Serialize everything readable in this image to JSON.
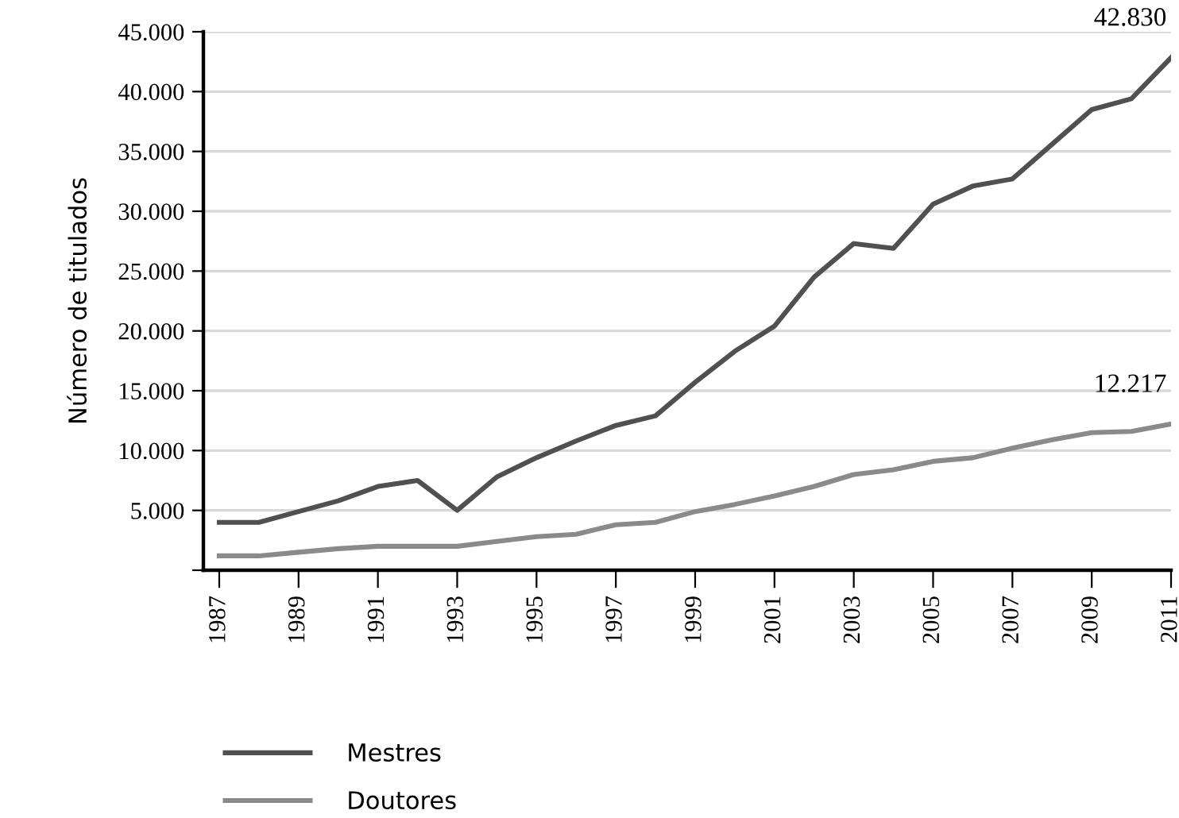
{
  "chart_data": {
    "type": "line",
    "ylabel": "Número de titulados",
    "x": [
      1987,
      1988,
      1989,
      1990,
      1991,
      1992,
      1993,
      1994,
      1995,
      1996,
      1997,
      1998,
      1999,
      2000,
      2001,
      2002,
      2003,
      2004,
      2005,
      2006,
      2007,
      2008,
      2009,
      2010,
      2011
    ],
    "series": [
      {
        "name": "Mestres",
        "color": "#505050",
        "values": [
          4000,
          4000,
          4900,
          5800,
          7000,
          7500,
          5000,
          7800,
          9400,
          10800,
          12100,
          12900,
          15700,
          18300,
          20400,
          24500,
          27300,
          26900,
          30600,
          32100,
          32700,
          35600,
          38500,
          39400,
          42830
        ]
      },
      {
        "name": "Doutores",
        "color": "#8a8a8a",
        "values": [
          1200,
          1200,
          1500,
          1800,
          2000,
          2000,
          2000,
          2400,
          2800,
          3000,
          3800,
          4000,
          4900,
          5500,
          6200,
          7000,
          8000,
          8400,
          9100,
          9400,
          10200,
          10900,
          11500,
          11600,
          12217
        ]
      }
    ],
    "annotations": [
      {
        "text": "42.830",
        "x": 2011,
        "y": 42830
      },
      {
        "text": "12.217",
        "x": 2011,
        "y": 12217
      }
    ],
    "xlim": [
      1986.6,
      2011
    ],
    "xticks": [
      1987,
      1989,
      1991,
      1993,
      1995,
      1997,
      1999,
      2001,
      2003,
      2005,
      2007,
      2009,
      2011
    ],
    "ylim": [
      0,
      45000
    ],
    "yticks": [
      {
        "value": 0,
        "label": null
      },
      {
        "value": 5000,
        "label": "5.000"
      },
      {
        "value": 10000,
        "label": "10.000"
      },
      {
        "value": 15000,
        "label": "15.000"
      },
      {
        "value": 20000,
        "label": "20.000"
      },
      {
        "value": 25000,
        "label": "25.000"
      },
      {
        "value": 30000,
        "label": "30.000"
      },
      {
        "value": 35000,
        "label": "35.000"
      },
      {
        "value": 40000,
        "label": "40.000"
      },
      {
        "value": 45000,
        "label": "45.000"
      }
    ],
    "grid": "y",
    "legend": "bottom left",
    "marker": "none",
    "line_style": "solid"
  }
}
